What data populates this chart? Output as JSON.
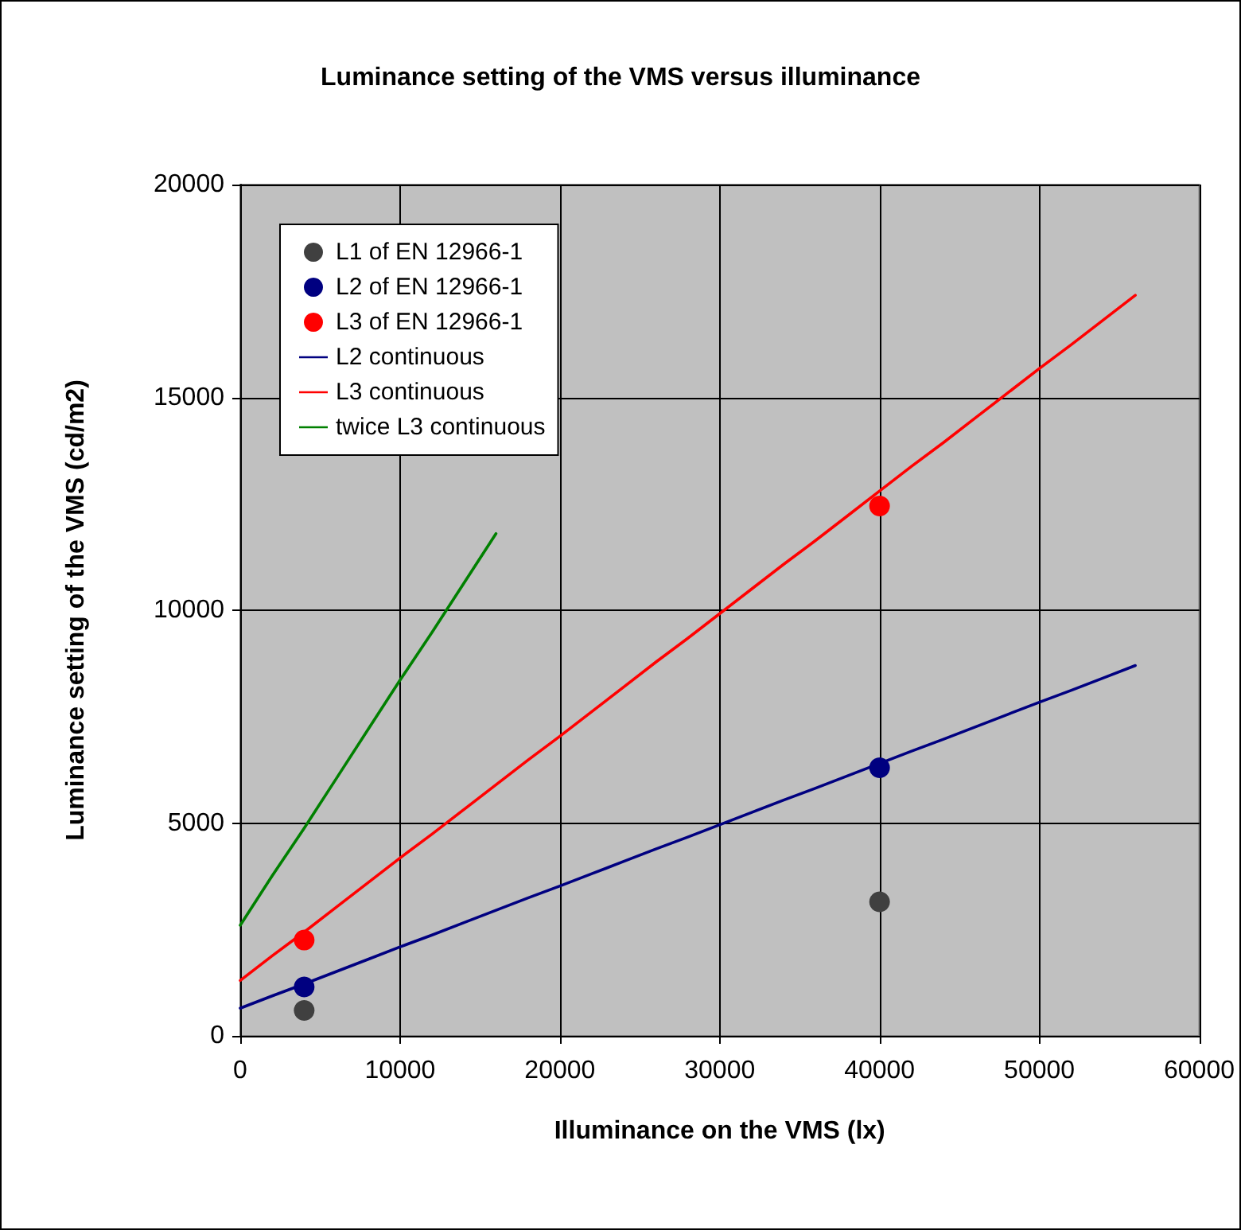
{
  "chart_data": {
    "type": "line",
    "title": "Luminance setting of the VMS versus illuminance",
    "xlabel": "Illuminance on the VMS (lx)",
    "ylabel": "Luminance setting of the VMS (cd/m2)",
    "xlim": [
      0,
      60000
    ],
    "xticks": [
      0,
      10000,
      20000,
      30000,
      40000,
      50000,
      60000
    ],
    "ylim": [
      0,
      20000
    ],
    "yticks": [
      0,
      5000,
      10000,
      15000,
      20000
    ],
    "grid": true,
    "legend": "top left",
    "series": [
      {
        "name": "L1 of EN 12966-1",
        "type": "scatter",
        "marker": "circle",
        "color": "#404040",
        "x": [
          4000,
          40000
        ],
        "values": [
          600,
          3150
        ]
      },
      {
        "name": "L2 of EN 12966-1",
        "type": "scatter",
        "marker": "circle",
        "color": "#000080",
        "x": [
          4000,
          40000
        ],
        "values": [
          1150,
          6300
        ]
      },
      {
        "name": "L3 of EN 12966-1",
        "type": "scatter",
        "marker": "circle",
        "color": "#ff0000",
        "x": [
          4000,
          40000
        ],
        "values": [
          2250,
          12450
        ]
      },
      {
        "name": "L2 continuous",
        "marker": "none",
        "color": "#000080",
        "x": [
          0,
          2000,
          4000,
          6000,
          8000,
          10000,
          12000,
          14000,
          16000,
          18000,
          20000,
          22000,
          24000,
          26000,
          28000,
          30000,
          32000,
          34000,
          36000,
          38000,
          40000,
          42000,
          44000,
          46000,
          48000,
          50000,
          52000,
          54000,
          56000
        ],
        "values": [
          650,
          940,
          1220,
          1510,
          1800,
          2090,
          2370,
          2660,
          2950,
          3240,
          3520,
          3810,
          4100,
          4390,
          4670,
          4960,
          5250,
          5540,
          5820,
          6110,
          6400,
          6690,
          6970,
          7260,
          7550,
          7840,
          8120,
          8410,
          8700
        ]
      },
      {
        "name": "L3 continuous",
        "marker": "none",
        "color": "#ff0000",
        "x": [
          0,
          2000,
          4000,
          6000,
          8000,
          10000,
          12000,
          14000,
          16000,
          18000,
          20000,
          22000,
          24000,
          26000,
          28000,
          30000,
          32000,
          34000,
          36000,
          38000,
          40000,
          42000,
          44000,
          46000,
          48000,
          50000,
          52000,
          54000,
          56000
        ],
        "values": [
          1300,
          1880,
          2440,
          3020,
          3600,
          4180,
          4740,
          5320,
          5900,
          6480,
          7040,
          7620,
          8200,
          8780,
          9340,
          9920,
          10500,
          11080,
          11640,
          12220,
          12800,
          13380,
          13940,
          14520,
          15100,
          15680,
          16240,
          16820,
          17400
        ]
      },
      {
        "name": "twice L3 continuous",
        "marker": "none",
        "color": "#008000",
        "x": [
          0,
          2000,
          4000,
          6000,
          8000,
          10000,
          12000,
          14000,
          16000
        ],
        "values": [
          2600,
          3760,
          4880,
          6040,
          7200,
          8360,
          9480,
          10640,
          11800
        ]
      }
    ]
  }
}
